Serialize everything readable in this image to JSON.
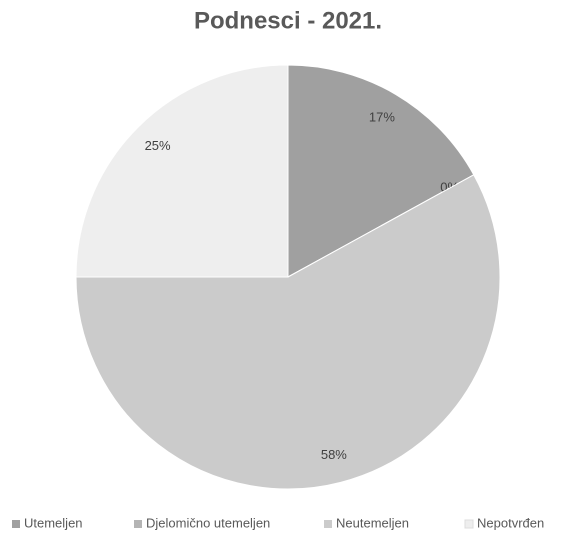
{
  "chart_data": {
    "type": "pie",
    "title": "Podnesci  - 2021.",
    "categories": [
      "Utemeljen",
      "Djelomično utemeljen",
      "Neutemeljen",
      "Nepotvrđen"
    ],
    "values": [
      17,
      0,
      58,
      25
    ],
    "value_labels": [
      "17%",
      "0%",
      "58%",
      "25%"
    ],
    "colors": [
      "#a0a0a0",
      "#b4b4b4",
      "#cbcbcb",
      "#eeeeee"
    ],
    "legend": "bottom"
  }
}
